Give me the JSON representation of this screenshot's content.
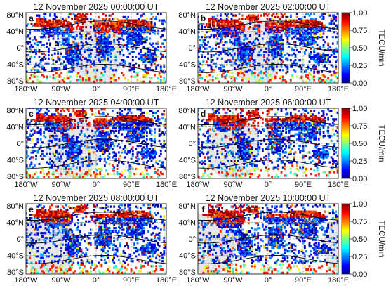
{
  "chart_data": {
    "type": "heatmap",
    "colormap": "jet",
    "background_color": "#ffffff",
    "nightside_color": "#e6e6e6",
    "colorbar": {
      "label": "TECU/min",
      "range": [
        0,
        1
      ],
      "ticks": [
        "1.00",
        "0.75",
        "0.50",
        "0.25",
        "0.00"
      ]
    },
    "x_ticks": [
      "180°W",
      "90°W",
      "0°",
      "90°E",
      "180°E"
    ],
    "y_ticks": [
      "80°N",
      "40°N",
      "0°",
      "40°S",
      "80°S"
    ],
    "xlim": [
      -180,
      180
    ],
    "ylim": [
      -85,
      85
    ],
    "grid": true,
    "panels": [
      {
        "label": "a",
        "title": "12 November 2025 00:00:00 UT",
        "subsolar_lon": 180
      },
      {
        "label": "b",
        "title": "12 November 2025 02:00:00 UT",
        "subsolar_lon": 150
      },
      {
        "label": "c",
        "title": "12 November 2025 04:00:00 UT",
        "subsolar_lon": 120
      },
      {
        "label": "d",
        "title": "12 November 2025 06:00:00 UT",
        "subsolar_lon": 90
      },
      {
        "label": "e",
        "title": "12 November 2025 08:00:00 UT",
        "subsolar_lon": 60
      },
      {
        "label": "f",
        "title": "12 November 2025 10:00:00 UT",
        "subsolar_lon": 30
      }
    ]
  }
}
